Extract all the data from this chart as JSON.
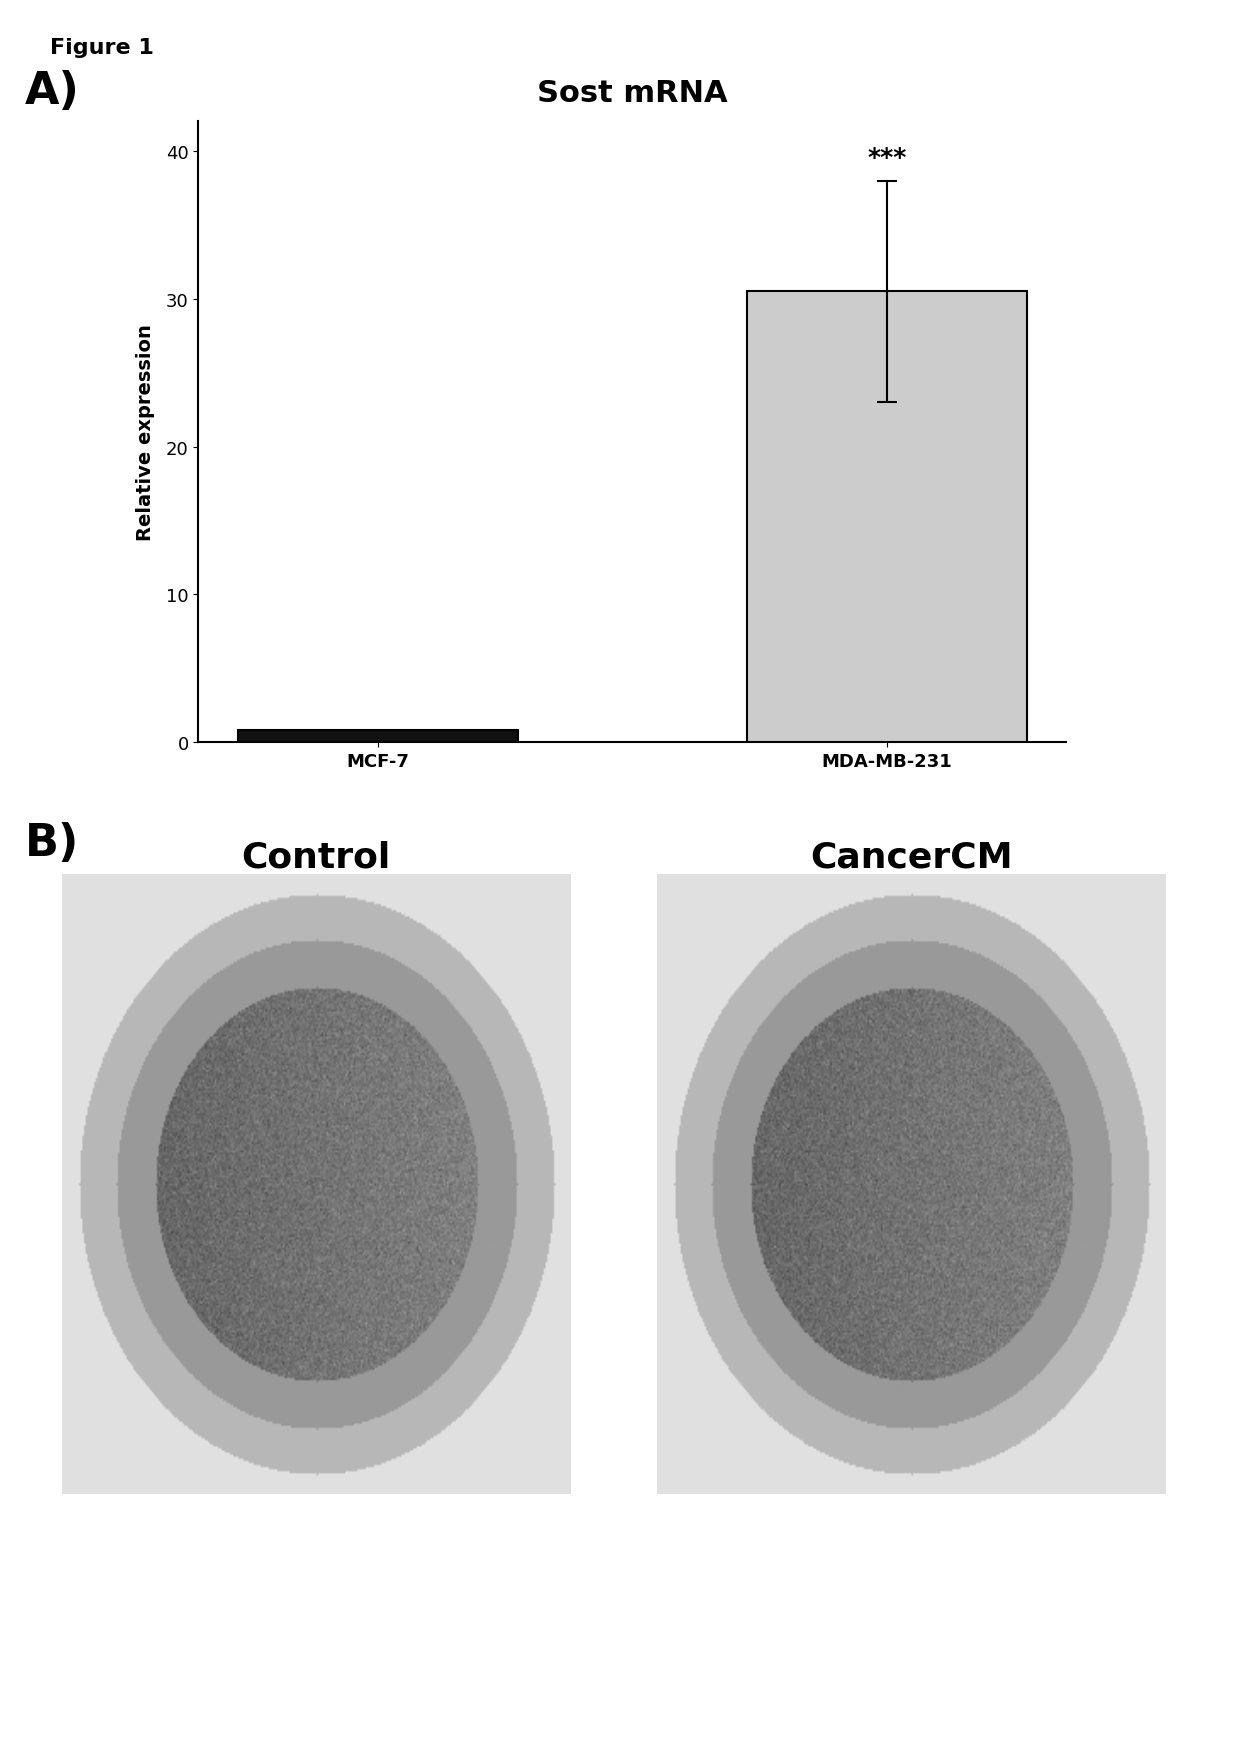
{
  "figure_title": "Figure 1",
  "panel_A_label": "A)",
  "panel_B_label": "B)",
  "bar_title": "Sost mRNA",
  "categories": [
    "MCF-7",
    "MDA-MB-231"
  ],
  "values": [
    0.8,
    30.5
  ],
  "error_bars": [
    0.15,
    7.5
  ],
  "bar_colors": [
    "#111111",
    "#cccccc"
  ],
  "bar_edge_color": "#000000",
  "ylabel": "Relative expression",
  "ylim": [
    0,
    42
  ],
  "yticks": [
    0,
    10,
    20,
    30,
    40
  ],
  "significance_text": "***",
  "control_label": "Control",
  "cancercm_label": "CancerCM",
  "background_color": "#ffffff",
  "bar_width": 0.55,
  "title_fontsize": 22,
  "axis_label_fontsize": 14,
  "tick_fontsize": 13,
  "panel_label_fontsize": 32,
  "sig_fontsize": 18,
  "image_label_fontsize": 26
}
